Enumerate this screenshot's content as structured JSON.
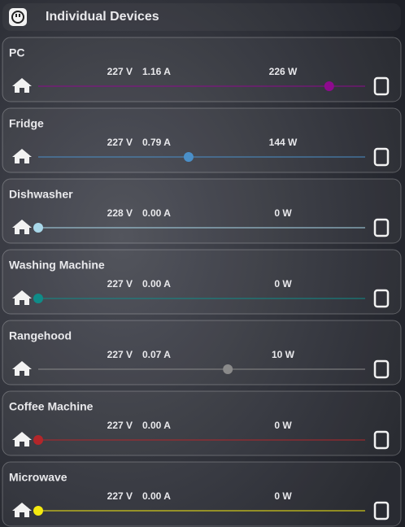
{
  "header": {
    "title": "Individual Devices"
  },
  "devices": [
    {
      "name": "PC",
      "voltage": "227 V",
      "current": "1.16 A",
      "power": "226 W",
      "position": 89,
      "color": "#8e0a8e"
    },
    {
      "name": "Fridge",
      "voltage": "227 V",
      "current": "0.79 A",
      "power": "144 W",
      "position": 46,
      "color": "#4a8fc8"
    },
    {
      "name": "Dishwasher",
      "voltage": "228 V",
      "current": "0.00 A",
      "power": "0 W",
      "position": 0,
      "color": "#a9d8ea"
    },
    {
      "name": "Washing Machine",
      "voltage": "227 V",
      "current": "0.00 A",
      "power": "0 W",
      "position": 0,
      "color": "#0f8c88"
    },
    {
      "name": "Rangehood",
      "voltage": "227 V",
      "current": "0.07 A",
      "power": "10 W",
      "position": 58,
      "color": "#8a8a8a"
    },
    {
      "name": "Coffee Machine",
      "voltage": "227 V",
      "current": "0.00 A",
      "power": "0 W",
      "position": 0,
      "color": "#b3262a"
    },
    {
      "name": "Microwave",
      "voltage": "227 V",
      "current": "0.00 A",
      "power": "0 W",
      "position": 0,
      "color": "#f5ea10"
    }
  ]
}
